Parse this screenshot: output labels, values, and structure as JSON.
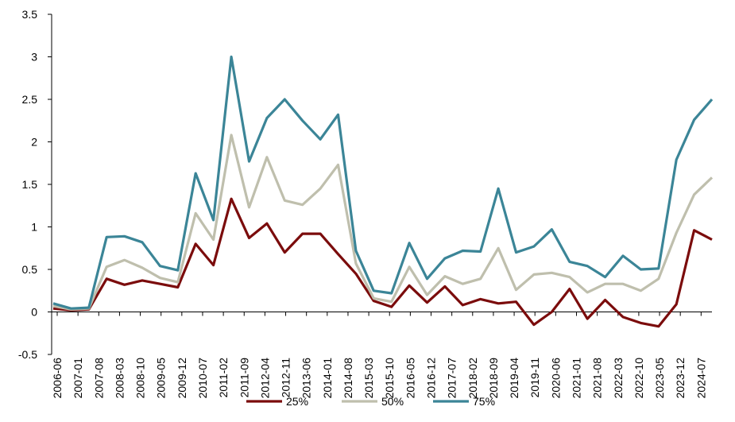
{
  "chart_data": {
    "type": "line",
    "x": [
      "2006-06",
      "2006-12",
      "2007-06",
      "2007-12",
      "2008-06",
      "2008-12",
      "2009-06",
      "2009-12",
      "2010-06",
      "2010-12",
      "2011-06",
      "2011-12",
      "2012-06",
      "2012-12",
      "2013-06",
      "2013-12",
      "2014-06",
      "2014-12",
      "2015-06",
      "2015-12",
      "2016-06",
      "2016-12",
      "2017-06",
      "2017-12",
      "2018-06",
      "2018-12",
      "2019-06",
      "2019-12",
      "2020-06",
      "2020-12",
      "2021-06",
      "2021-12",
      "2022-06",
      "2022-12",
      "2023-06",
      "2023-12",
      "2024-06",
      "2024-12"
    ],
    "series": [
      {
        "name": "25%",
        "color": "#7b0c0c",
        "values": [
          0.04,
          0.02,
          0.03,
          0.39,
          0.32,
          0.37,
          0.33,
          0.29,
          0.8,
          0.55,
          1.33,
          0.87,
          1.04,
          0.7,
          0.92,
          0.92,
          0.68,
          0.45,
          0.13,
          0.06,
          0.31,
          0.11,
          0.3,
          0.08,
          0.15,
          0.1,
          0.12,
          -0.15,
          0.0,
          0.27,
          -0.08,
          0.14,
          -0.06,
          -0.13,
          -0.17,
          0.09,
          0.96,
          0.85
        ]
      },
      {
        "name": "50%",
        "color": "#bfbfad",
        "values": [
          0.07,
          0.03,
          0.04,
          0.53,
          0.61,
          0.52,
          0.4,
          0.35,
          1.16,
          0.85,
          2.08,
          1.23,
          1.82,
          1.31,
          1.26,
          1.45,
          1.73,
          0.57,
          0.16,
          0.12,
          0.53,
          0.2,
          0.42,
          0.33,
          0.39,
          0.75,
          0.26,
          0.44,
          0.46,
          0.41,
          0.23,
          0.33,
          0.33,
          0.25,
          0.39,
          0.93,
          1.38,
          1.58
        ]
      },
      {
        "name": "75%",
        "color": "#3b8597",
        "values": [
          0.1,
          0.04,
          0.05,
          0.88,
          0.89,
          0.82,
          0.54,
          0.49,
          1.63,
          1.08,
          3.0,
          1.77,
          2.28,
          2.5,
          2.25,
          2.03,
          2.32,
          0.72,
          0.25,
          0.22,
          0.81,
          0.39,
          0.63,
          0.72,
          0.71,
          1.45,
          0.7,
          0.77,
          0.97,
          0.59,
          0.54,
          0.41,
          0.66,
          0.5,
          0.51,
          1.79,
          2.26,
          2.5
        ]
      }
    ],
    "xlim": [
      "2006-06",
      "2024-12"
    ],
    "xticks": [
      "2006-06",
      "2007-01",
      "2007-08",
      "2008-03",
      "2008-10",
      "2009-05",
      "2009-12",
      "2010-07",
      "2011-02",
      "2011-09",
      "2012-04",
      "2012-11",
      "2013-06",
      "2014-01",
      "2014-08",
      "2015-03",
      "2015-10",
      "2016-05",
      "2016-12",
      "2017-07",
      "2018-02",
      "2018-09",
      "2019-04",
      "2019-11",
      "2020-06",
      "2021-01",
      "2021-08",
      "2022-03",
      "2022-10",
      "2023-05",
      "2023-12",
      "2024-07"
    ],
    "ylim": [
      -0.5,
      3.5
    ],
    "yticks": [
      -0.5,
      0,
      0.5,
      1,
      1.5,
      2,
      2.5,
      3,
      3.5
    ],
    "legend": "bottom"
  }
}
